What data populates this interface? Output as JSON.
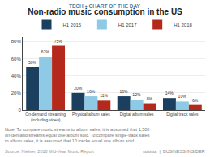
{
  "chart_data": {
    "type": "bar",
    "title": "Non-radio music consumption in the US",
    "subtitle": "TECH ♦ CHART OF THE DAY",
    "categories": [
      "On-demand streaming\n(including video)",
      "Physical album sales",
      "Digital album sales",
      "Digital track sales"
    ],
    "series": [
      {
        "name": "H1 2015",
        "color": "#1b3f5e",
        "values": [
          50,
          20,
          16,
          14
        ],
        "value_labels": [
          "50%",
          "20%",
          "16%",
          "14%"
        ]
      },
      {
        "name": "H1 2017",
        "color": "#8ecae6",
        "values": [
          62,
          16,
          12,
          10
        ],
        "value_labels": [
          "62%",
          "16%",
          "12%",
          "10%"
        ]
      },
      {
        "name": "H1 2018",
        "color": "#b5291c",
        "values": [
          75,
          11,
          8,
          6
        ],
        "value_labels": [
          "75%",
          "11%",
          "8%",
          "6%"
        ]
      }
    ],
    "ylim": [
      0,
      85
    ],
    "yticks": [
      {
        "value": 0,
        "label": "0"
      },
      {
        "value": 20,
        "label": "20%"
      },
      {
        "value": 40,
        "label": "40%"
      },
      {
        "value": 60,
        "label": "60%"
      },
      {
        "value": 80,
        "label": "80%"
      }
    ],
    "grid": true,
    "data_labels": true,
    "legend": "top",
    "annotations": [
      "Note: To compare music streams to album sales, it is assumed that 1,500\non-demand streams equal one album sold. To compare single-track sales\nto album sales, it is assumed that 10 tracks equal one album sold.",
      "Source: Nielsen 2018 Mid-Year Music Report",
      "statista  |  BUSINESS INSIDER"
    ]
  }
}
